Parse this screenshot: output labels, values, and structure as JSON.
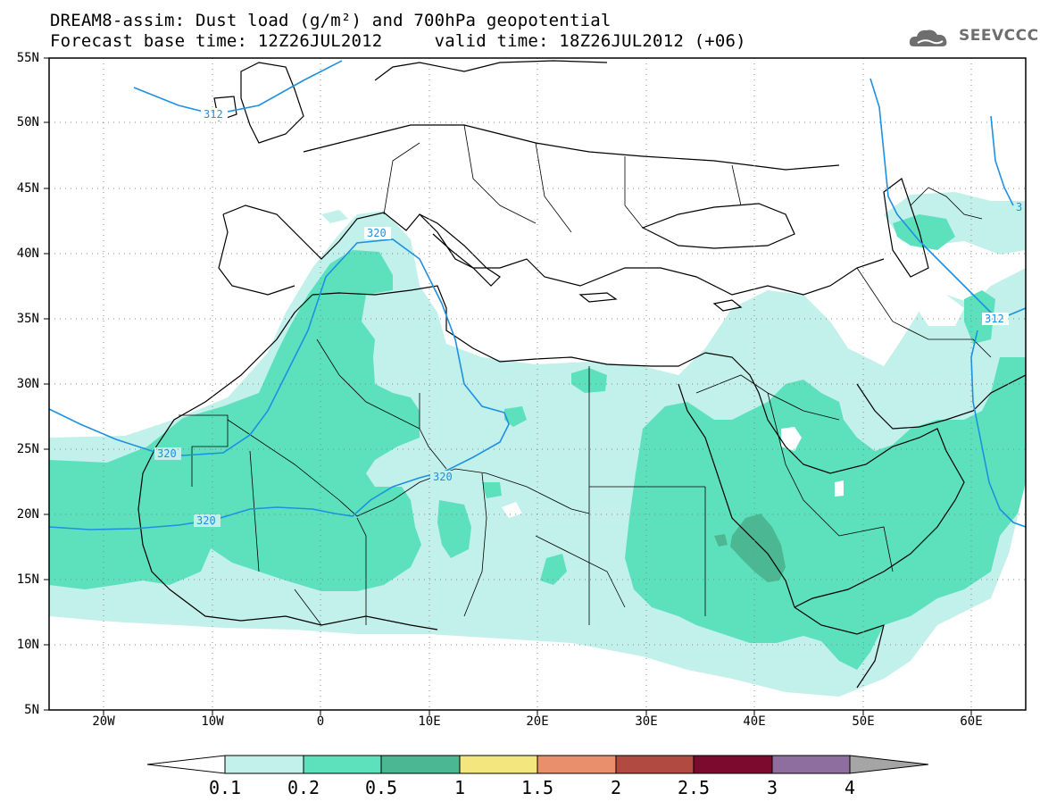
{
  "title": {
    "line1": "DREAM8-assim: Dust load (g/m²) and 700hPa geopotential",
    "line2": "Forecast base time: 12Z26JUL2012     valid time: 18Z26JUL2012 (+06)"
  },
  "logo": {
    "text": "SEEVCCC",
    "icon": "cloud-logo-icon"
  },
  "axes": {
    "lat_labels": [
      "55N",
      "50N",
      "45N",
      "40N",
      "35N",
      "30N",
      "25N",
      "20N",
      "15N",
      "10N",
      "5N"
    ],
    "lon_labels": [
      "20W",
      "10W",
      "0",
      "10E",
      "20E",
      "30E",
      "40E",
      "50E",
      "60E"
    ],
    "lat_range": [
      5,
      55
    ],
    "lon_range": [
      -25,
      65
    ],
    "grid": "dotted"
  },
  "geopotential_contours": [
    {
      "label": "312",
      "color": "#1e90e0"
    },
    {
      "label": "320",
      "color": "#1e90e0"
    },
    {
      "label": "320",
      "color": "#1e90e0"
    },
    {
      "label": "320",
      "color": "#1e90e0"
    },
    {
      "label": "320",
      "color": "#1e90e0"
    },
    {
      "label": "312",
      "color": "#1e90e0"
    },
    {
      "label": "3",
      "color": "#1e90e0"
    }
  ],
  "colorbar": {
    "labels": [
      "0.1",
      "0.2",
      "0.5",
      "1",
      "1.5",
      "2",
      "2.5",
      "3",
      "4"
    ],
    "colors": [
      "#c2f0ea",
      "#5ce1bc",
      "#4cb893",
      "#f4e67e",
      "#ea8f6c",
      "#b14a41",
      "#7c0a2e",
      "#8e6e9e",
      "#a5a5a5"
    ],
    "underflow_color": "#ffffff"
  }
}
